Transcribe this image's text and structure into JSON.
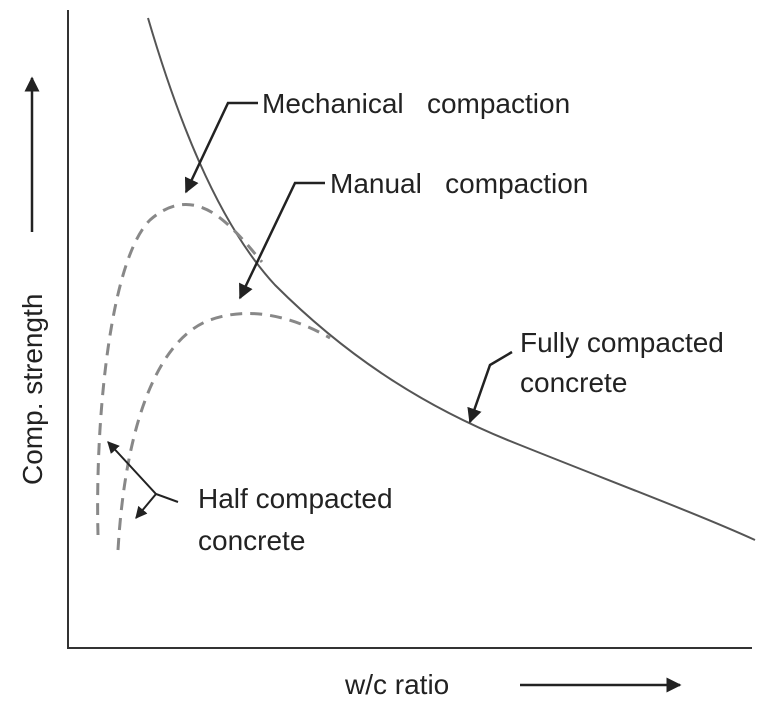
{
  "labels": {
    "mechanical": "Mechanical   compaction",
    "manual": "Manual   compaction",
    "fully": [
      "Fully compacted",
      "concrete"
    ],
    "half": [
      "Half compacted",
      "concrete"
    ],
    "y_axis": "Comp. strength",
    "x_axis": "w/c ratio"
  }
}
